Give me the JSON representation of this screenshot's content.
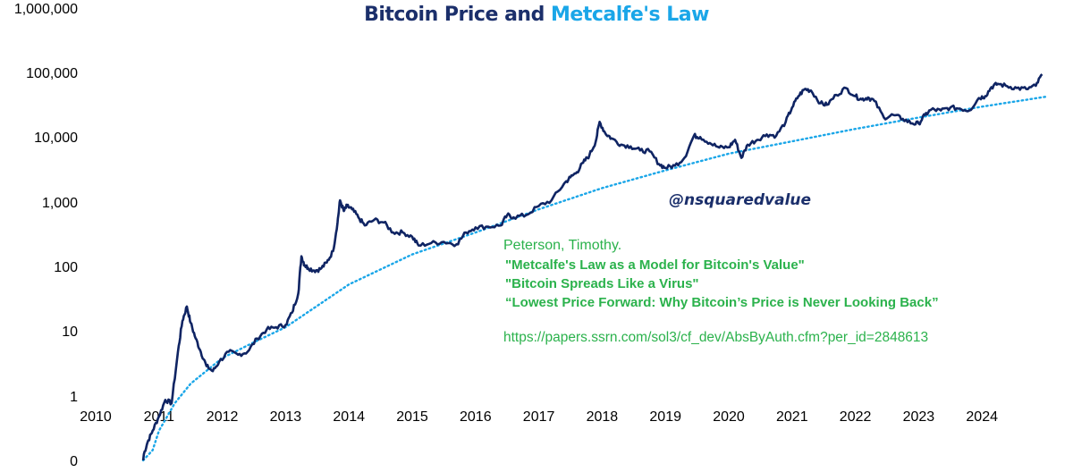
{
  "chart_data": {
    "type": "line",
    "title": "Bitcoin Price and Metcalfe's Law",
    "title_parts": [
      "Bitcoin Price",
      "and",
      "Metcalfe's Law"
    ],
    "y_scale": "log",
    "ylim": [
      0,
      1000000
    ],
    "y_tick_labels": [
      "1,000,000",
      "100,000",
      "10,000",
      "1,000",
      "100",
      "10",
      "1",
      "0"
    ],
    "x_tick_labels": [
      "2010",
      "2011",
      "2012",
      "2013",
      "2014",
      "2015",
      "2016",
      "2017",
      "2018",
      "2019",
      "2020",
      "2021",
      "2022",
      "2023",
      "2024"
    ],
    "xlim": [
      2010,
      2025
    ],
    "colors": {
      "price": "#0f2463",
      "metcalfe": "#1aa6e8",
      "title_dark": "#1b2f6b",
      "title_light": "#1aa6e8",
      "citation": "#2bb24c"
    },
    "series": [
      {
        "role": "price",
        "style": "solid",
        "x": [
          2010.75,
          2010.82,
          2010.9,
          2011.0,
          2011.1,
          2011.2,
          2011.3,
          2011.37,
          2011.44,
          2011.5,
          2011.58,
          2011.66,
          2011.75,
          2011.85,
          2011.95,
          2012.1,
          2012.25,
          2012.4,
          2012.55,
          2012.7,
          2012.85,
          2013.0,
          2013.1,
          2013.2,
          2013.25,
          2013.3,
          2013.35,
          2013.45,
          2013.55,
          2013.65,
          2013.75,
          2013.82,
          2013.86,
          2013.92,
          2013.97,
          2014.05,
          2014.15,
          2014.25,
          2014.4,
          2014.55,
          2014.7,
          2014.85,
          2015.0,
          2015.1,
          2015.3,
          2015.5,
          2015.7,
          2015.85,
          2016.0,
          2016.2,
          2016.4,
          2016.5,
          2016.6,
          2016.8,
          2017.0,
          2017.2,
          2017.4,
          2017.5,
          2017.6,
          2017.7,
          2017.8,
          2017.9,
          2017.96,
          2018.05,
          2018.15,
          2018.3,
          2018.45,
          2018.6,
          2018.75,
          2018.9,
          2019.0,
          2019.15,
          2019.3,
          2019.45,
          2019.55,
          2019.7,
          2019.85,
          2020.0,
          2020.1,
          2020.2,
          2020.3,
          2020.45,
          2020.6,
          2020.75,
          2020.9,
          2021.0,
          2021.1,
          2021.2,
          2021.3,
          2021.45,
          2021.55,
          2021.7,
          2021.85,
          2022.0,
          2022.1,
          2022.2,
          2022.3,
          2022.45,
          2022.6,
          2022.75,
          2022.9,
          2023.0,
          2023.1,
          2023.2,
          2023.35,
          2023.5,
          2023.65,
          2023.8,
          2023.95,
          2024.05,
          2024.15,
          2024.25,
          2024.4,
          2024.55,
          2024.7,
          2024.85,
          2024.95
        ],
        "y": [
          0,
          0.2,
          0.3,
          0.5,
          0.9,
          0.8,
          5,
          15,
          25,
          14,
          8,
          5,
          3,
          2.5,
          3.5,
          5,
          4.5,
          5,
          8,
          11,
          12,
          13,
          20,
          40,
          150,
          110,
          100,
          90,
          95,
          120,
          180,
          500,
          1100,
          750,
          900,
          800,
          600,
          450,
          550,
          500,
          350,
          350,
          300,
          220,
          240,
          250,
          230,
          350,
          420,
          430,
          450,
          650,
          600,
          650,
          900,
          1100,
          2000,
          2500,
          3000,
          4200,
          5500,
          9000,
          18000,
          12000,
          10000,
          8000,
          7500,
          6500,
          6300,
          4000,
          3500,
          3800,
          5000,
          11000,
          10500,
          8500,
          7200,
          7300,
          9500,
          5000,
          8000,
          9500,
          11500,
          11000,
          18000,
          30000,
          45000,
          58000,
          55000,
          35000,
          33000,
          47000,
          60000,
          45000,
          40000,
          43000,
          38000,
          21000,
          23000,
          20000,
          17000,
          17000,
          23000,
          28000,
          27000,
          30000,
          29000,
          27000,
          42000,
          45000,
          62000,
          70000,
          64000,
          60000,
          58000,
          65000,
          98000
        ]
      },
      {
        "role": "metcalfe",
        "style": "dotted",
        "x": [
          2010.75,
          2010.9,
          2011.0,
          2011.25,
          2011.5,
          2012.0,
          2012.5,
          2013.0,
          2014.0,
          2015.0,
          2016.0,
          2017.0,
          2018.0,
          2019.0,
          2020.0,
          2021.0,
          2022.0,
          2023.0,
          2024.0,
          2025.0
        ],
        "y": [
          0,
          0.15,
          0.3,
          0.8,
          1.6,
          4,
          7,
          12,
          55,
          160,
          350,
          800,
          1700,
          3200,
          5800,
          9000,
          14000,
          21000,
          31000,
          44000
        ]
      }
    ]
  },
  "annotations": {
    "handle": "@nsquaredvalue",
    "citation_author": "Peterson, Timothy.",
    "citation_works": [
      "\"Metcalfe's Law as a Model for Bitcoin's Value\"",
      "\"Bitcoin Spreads Like a Virus\"",
      "“Lowest Price Forward: Why Bitcoin’s Price is Never Looking Back”"
    ],
    "citation_url": "https://papers.ssrn.com/sol3/cf_dev/AbsByAuth.cfm?per_id=2848613"
  }
}
